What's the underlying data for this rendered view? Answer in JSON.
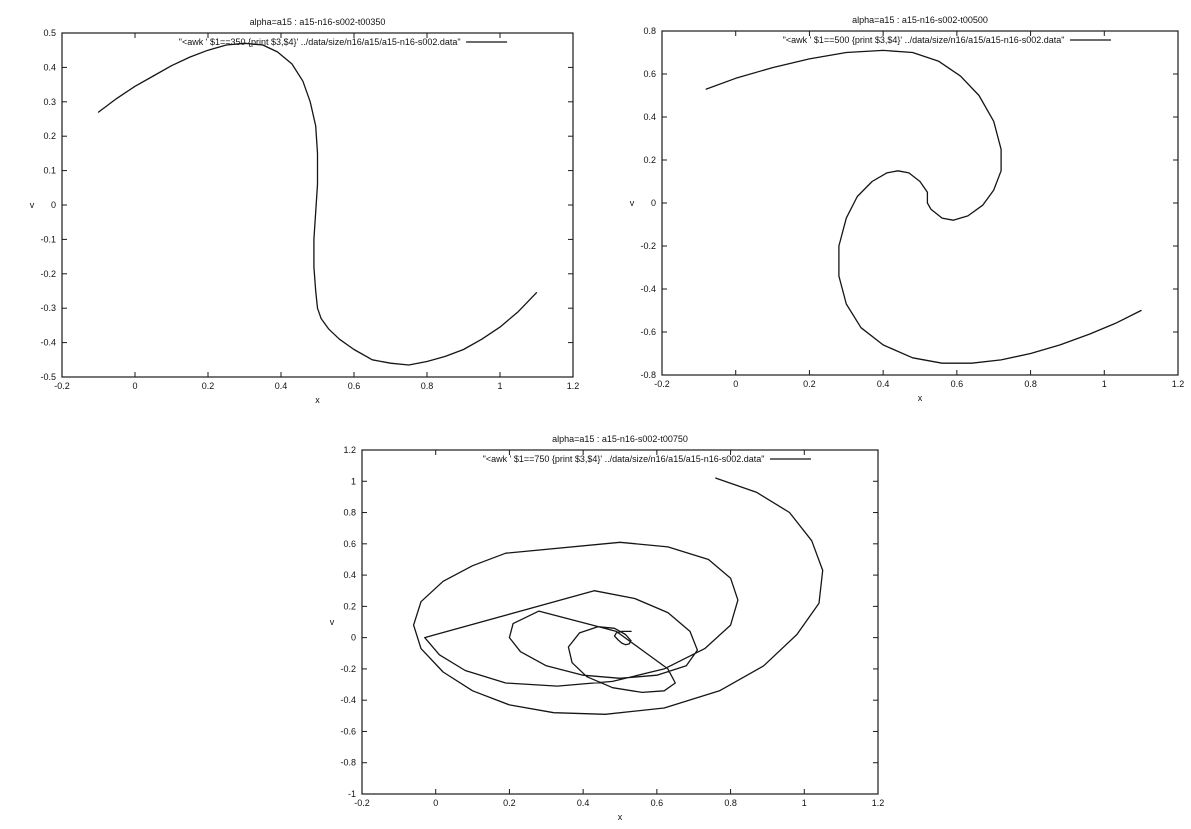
{
  "chart_data": [
    {
      "type": "line",
      "title": "alpha=a15 : a15-n16-s002-t00350",
      "xlabel": "x",
      "ylabel": "v",
      "xlim": [
        -0.2,
        1.2
      ],
      "ylim": [
        -0.5,
        0.5
      ],
      "xticks": [
        "-0.2",
        "0",
        "0.2",
        "0.4",
        "0.6",
        "0.8",
        "1",
        "1.2"
      ],
      "yticks": [
        "-0.5",
        "-0.4",
        "-0.3",
        "-0.2",
        "-0.1",
        "0",
        "0.1",
        "0.2",
        "0.3",
        "0.4",
        "0.5"
      ],
      "grid": false,
      "legend_position": "top",
      "series": [
        {
          "name": "\"<awk ' $1==350 {print $3,$4}' ../data/size/n16/a15/a15-n16-s002.data\"",
          "x": [
            -0.1,
            -0.05,
            0.0,
            0.05,
            0.1,
            0.15,
            0.2,
            0.25,
            0.3,
            0.35,
            0.39,
            0.43,
            0.46,
            0.48,
            0.495,
            0.5,
            0.5,
            0.495,
            0.49,
            0.49,
            0.495,
            0.5,
            0.51,
            0.53,
            0.56,
            0.6,
            0.65,
            0.7,
            0.75,
            0.8,
            0.85,
            0.9,
            0.95,
            1.0,
            1.05,
            1.1
          ],
          "y": [
            0.27,
            0.31,
            0.345,
            0.375,
            0.405,
            0.43,
            0.45,
            0.465,
            0.47,
            0.465,
            0.445,
            0.41,
            0.36,
            0.3,
            0.23,
            0.15,
            0.06,
            -0.02,
            -0.1,
            -0.18,
            -0.25,
            -0.3,
            -0.33,
            -0.36,
            -0.39,
            -0.42,
            -0.45,
            -0.46,
            -0.465,
            -0.455,
            -0.44,
            -0.42,
            -0.39,
            -0.355,
            -0.31,
            -0.255
          ]
        }
      ]
    },
    {
      "type": "line",
      "title": "alpha=a15 : a15-n16-s002-t00500",
      "xlabel": "x",
      "ylabel": "v",
      "xlim": [
        -0.2,
        1.2
      ],
      "ylim": [
        -0.8,
        0.8
      ],
      "xticks": [
        "-0.2",
        "0",
        "0.2",
        "0.4",
        "0.6",
        "0.8",
        "1",
        "1.2"
      ],
      "yticks": [
        "-0.8",
        "-0.6",
        "-0.4",
        "-0.2",
        "0",
        "0.2",
        "0.4",
        "0.6",
        "0.8"
      ],
      "grid": false,
      "legend_position": "top",
      "series": [
        {
          "name": "\"<awk ' $1==500 {print $3,$4}' ../data/size/n16/a15/a15-n16-s002.data\"",
          "x": [
            -0.08,
            0.0,
            0.1,
            0.2,
            0.3,
            0.4,
            0.48,
            0.55,
            0.61,
            0.66,
            0.7,
            0.72,
            0.72,
            0.7,
            0.67,
            0.63,
            0.59,
            0.56,
            0.53,
            0.52,
            0.52,
            0.5,
            0.47,
            0.44,
            0.41,
            0.37,
            0.33,
            0.3,
            0.28,
            0.28,
            0.3,
            0.34,
            0.4,
            0.48,
            0.56,
            0.64,
            0.72,
            0.8,
            0.88,
            0.96,
            1.03,
            1.1
          ],
          "y": [
            0.53,
            0.58,
            0.63,
            0.67,
            0.7,
            0.71,
            0.7,
            0.66,
            0.59,
            0.5,
            0.38,
            0.25,
            0.15,
            0.06,
            -0.01,
            -0.06,
            -0.08,
            -0.07,
            -0.03,
            0.0,
            0.05,
            0.1,
            0.14,
            0.15,
            0.14,
            0.1,
            0.03,
            -0.07,
            -0.2,
            -0.34,
            -0.47,
            -0.58,
            -0.66,
            -0.72,
            -0.745,
            -0.745,
            -0.73,
            -0.7,
            -0.66,
            -0.61,
            -0.56,
            -0.5
          ]
        }
      ]
    },
    {
      "type": "line",
      "title": "alpha=a15 : a15-n16-s002-t00750",
      "xlabel": "x",
      "ylabel": "v",
      "xlim": [
        -0.2,
        1.2
      ],
      "ylim": [
        -1,
        1.2
      ],
      "xticks": [
        "-0.2",
        "0",
        "0.2",
        "0.4",
        "0.6",
        "0.8",
        "1",
        "1.2"
      ],
      "yticks": [
        "-1",
        "-0.8",
        "-0.6",
        "-0.4",
        "-0.2",
        "0",
        "0.2",
        "0.4",
        "0.6",
        "0.8",
        "1",
        "1.2"
      ],
      "grid": false,
      "legend_position": "top",
      "series": [
        {
          "name": "\"<awk ' $1==750 {print $3,$4}' ../data/size/n16/a15/a15-n16-s002.data\"",
          "x": [
            0.76,
            0.87,
            0.96,
            1.02,
            1.05,
            1.04,
            0.98,
            0.89,
            0.77,
            0.62,
            0.46,
            0.32,
            0.2,
            0.1,
            0.02,
            -0.04,
            -0.06,
            -0.04,
            0.02,
            0.1,
            0.19,
            0.5,
            0.63,
            0.74,
            0.8,
            0.82,
            0.8,
            0.73,
            0.62,
            0.48,
            0.33,
            0.19,
            0.08,
            0.01,
            -0.03,
            0.43,
            0.54,
            0.63,
            0.69,
            0.71,
            0.68,
            0.6,
            0.5,
            0.4,
            0.3,
            0.23,
            0.2,
            0.21,
            0.28,
            0.49,
            0.56,
            0.63,
            0.65,
            0.62,
            0.56,
            0.48,
            0.41,
            0.37,
            0.36,
            0.39,
            0.44,
            0.485,
            0.515,
            0.53,
            0.525,
            0.515,
            0.505,
            0.495,
            0.485,
            0.49,
            0.505,
            0.53
          ],
          "y": [
            1.02,
            0.93,
            0.8,
            0.62,
            0.43,
            0.22,
            0.02,
            -0.18,
            -0.34,
            -0.45,
            -0.49,
            -0.48,
            -0.43,
            -0.34,
            -0.22,
            -0.07,
            0.08,
            0.23,
            0.36,
            0.46,
            0.54,
            0.61,
            0.58,
            0.5,
            0.38,
            0.24,
            0.08,
            -0.07,
            -0.2,
            -0.28,
            -0.31,
            -0.29,
            -0.21,
            -0.11,
            0.0,
            0.3,
            0.25,
            0.16,
            0.04,
            -0.08,
            -0.18,
            -0.24,
            -0.26,
            -0.24,
            -0.18,
            -0.09,
            0.0,
            0.09,
            0.17,
            0.04,
            -0.08,
            -0.2,
            -0.29,
            -0.34,
            -0.35,
            -0.32,
            -0.25,
            -0.16,
            -0.06,
            0.03,
            0.07,
            0.06,
            0.02,
            -0.02,
            -0.04,
            -0.045,
            -0.035,
            -0.015,
            0.01,
            0.03,
            0.04,
            0.04
          ]
        }
      ]
    }
  ]
}
